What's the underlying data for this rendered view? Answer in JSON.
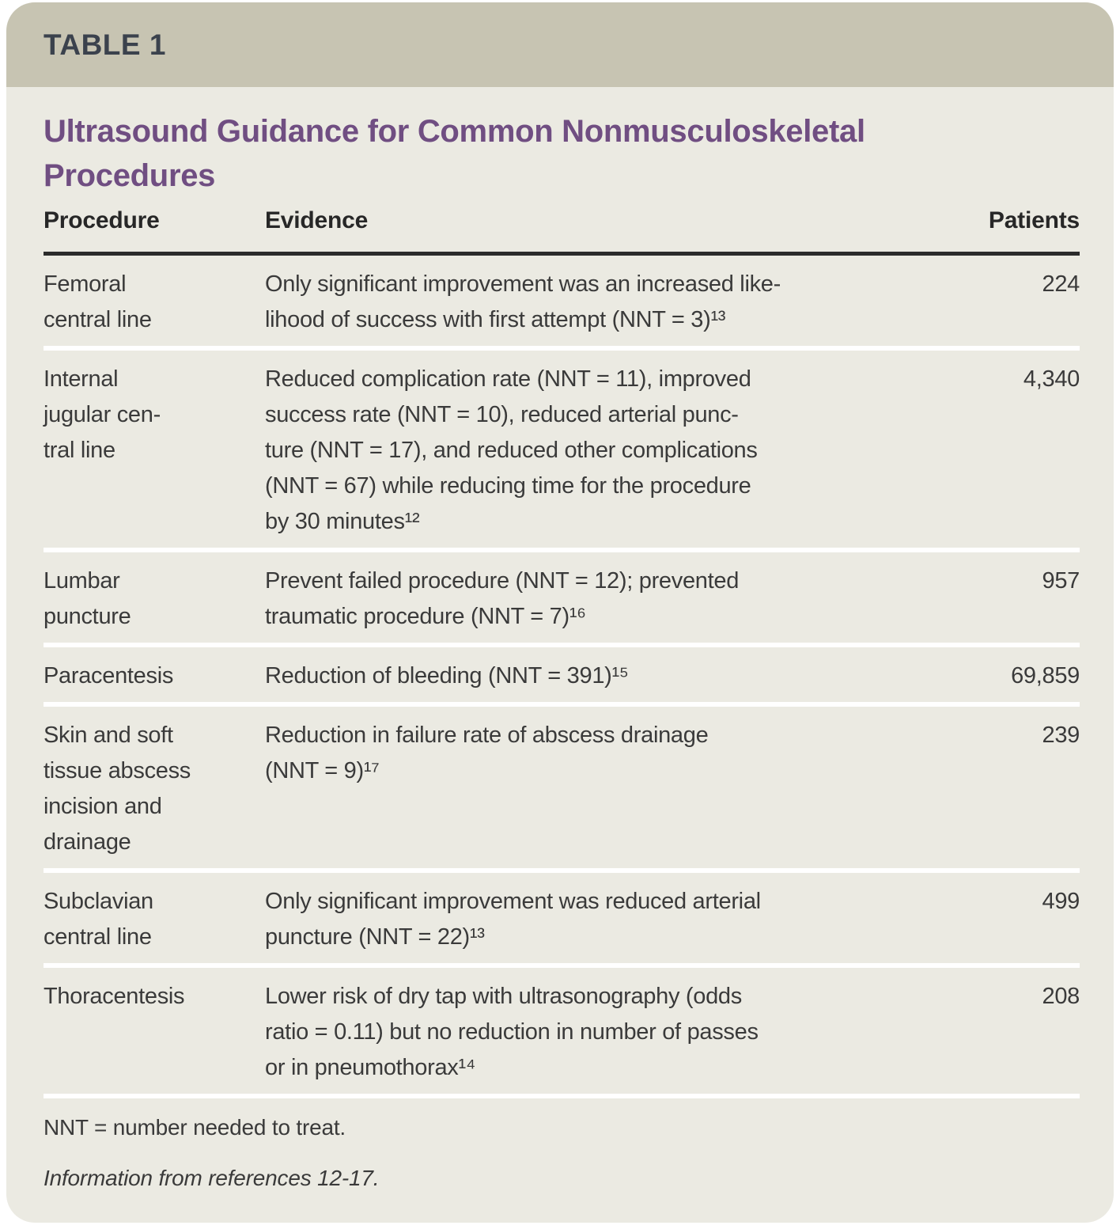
{
  "table_label": "TABLE 1",
  "title": "Ultrasound Guidance for Common Nonmusculoskeletal\nProcedures",
  "columns": {
    "procedure": "Procedure",
    "evidence": "Evidence",
    "patients": "Patients"
  },
  "rows": [
    {
      "procedure": "Femoral\ncentral line",
      "evidence": "Only significant improvement was an increased like-\nlihood of success with first attempt (NNT = 3)¹³",
      "patients": "224"
    },
    {
      "procedure": "Internal\njugular cen-\ntral line",
      "evidence": "Reduced complication rate (NNT = 11), improved\nsuccess rate (NNT = 10), reduced arterial punc-\nture (NNT = 17), and reduced other complications\n(NNT = 67) while reducing time for the procedure\nby 30 minutes¹²",
      "patients": "4,340"
    },
    {
      "procedure": "Lumbar\npuncture",
      "evidence": "Prevent failed procedure (NNT = 12); prevented\ntraumatic procedure (NNT = 7)¹⁶",
      "patients": "957"
    },
    {
      "procedure": "Paracentesis",
      "evidence": "Reduction of bleeding (NNT = 391)¹⁵",
      "patients": "69,859"
    },
    {
      "procedure": "Skin and soft\ntissue abscess\nincision and\ndrainage",
      "evidence": "Reduction in failure rate of abscess drainage\n(NNT = 9)¹⁷",
      "patients": "239"
    },
    {
      "procedure": "Subclavian\ncentral line",
      "evidence": "Only significant improvement was reduced arterial\npuncture (NNT = 22)¹³",
      "patients": "499"
    },
    {
      "procedure": "Thoracentesis",
      "evidence": "Lower risk of dry tap with ultrasonography (odds\nratio = 0.11) but no reduction in number of passes\nor in pneumothorax¹⁴",
      "patients": "208"
    }
  ],
  "footnotes": {
    "abbreviation": "NNT = number needed to treat.",
    "source": "Information from references 12-17."
  },
  "colors": {
    "band_background": "#c7c4b2",
    "body_background": "#ebeae2",
    "title_purple": "#704e82",
    "label_slate": "#3b424d",
    "body_text": "#3a3a3a",
    "header_rule": "#2b2b2b",
    "row_separator": "#ffffff"
  }
}
